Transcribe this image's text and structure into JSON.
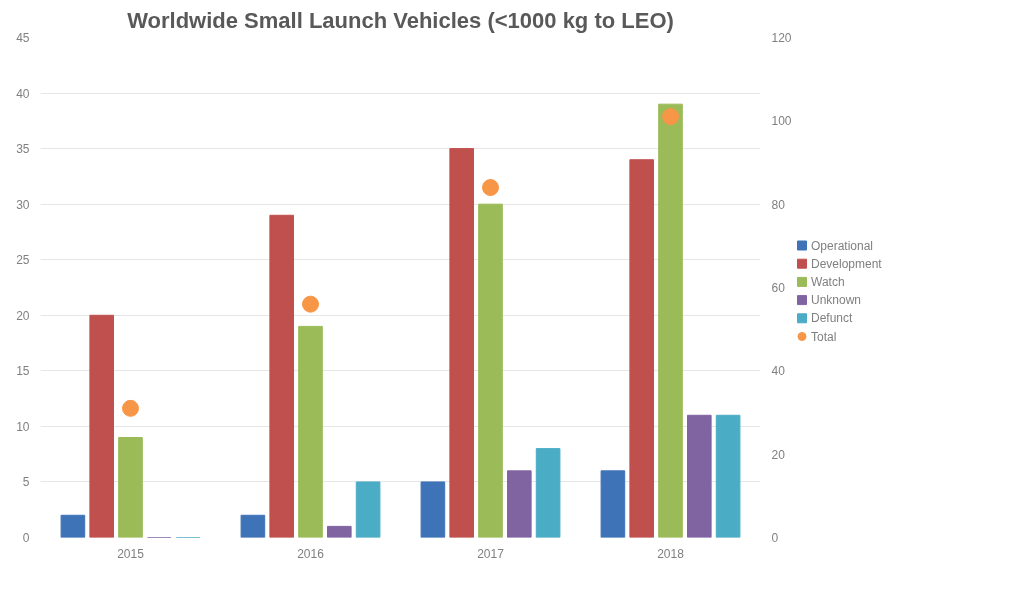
{
  "chart_data": {
    "type": "bar",
    "title": "Worldwide Small Launch Vehicles (<1000 kg to LEO)",
    "categories": [
      "2015",
      "2016",
      "2017",
      "2018"
    ],
    "series": [
      {
        "name": "Operational",
        "color": "#3f73b8",
        "values": [
          2,
          2,
          5,
          6
        ]
      },
      {
        "name": "Development",
        "color": "#c0504d",
        "values": [
          20,
          29,
          35,
          34
        ]
      },
      {
        "name": "Watch",
        "color": "#9bbb59",
        "values": [
          9,
          19,
          30,
          39
        ]
      },
      {
        "name": "Unknown",
        "color": "#8064a2",
        "values": [
          0,
          1,
          6,
          11
        ]
      },
      {
        "name": "Defunct",
        "color": "#4bacc6",
        "values": [
          0,
          5,
          8,
          11
        ]
      },
      {
        "name": "Total",
        "color": "#f79646",
        "type": "scatter",
        "axis": "y2",
        "values": [
          31,
          56,
          84,
          101
        ]
      }
    ],
    "ylim": [
      0,
      45
    ],
    "yticks": [
      0,
      5,
      10,
      15,
      20,
      25,
      30,
      35,
      40,
      45
    ],
    "y2lim": [
      0,
      120
    ],
    "y2ticks": [
      0,
      20,
      40,
      60,
      80,
      100,
      120
    ],
    "grid": "y",
    "legend": "right",
    "marker": "circle"
  }
}
